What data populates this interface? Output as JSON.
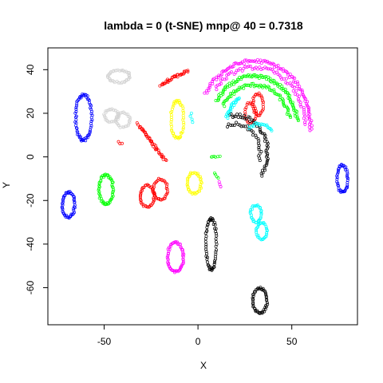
{
  "chart_data": {
    "type": "scatter",
    "title": "lambda = 0 (t-SNE) mnp@ 40 = 0.7318",
    "xlabel": "X",
    "ylabel": "Y",
    "xlim": [
      -80,
      85
    ],
    "ylim": [
      -77,
      50
    ],
    "x_ticks": [
      -50,
      0,
      50
    ],
    "y_ticks": [
      -60,
      -40,
      -20,
      0,
      20,
      40
    ],
    "x_tick_labels": [
      "-50",
      "0",
      "50"
    ],
    "y_tick_labels": [
      "-60",
      "-40",
      "-20",
      "0",
      "20",
      "40"
    ],
    "grid": false,
    "legend": "none",
    "clusters": [
      {
        "shape": "ellipse",
        "color": "#0000ff",
        "cx": -61,
        "cy": 18,
        "rx": 4.5,
        "ry": 11,
        "n": 70
      },
      {
        "shape": "ellipse",
        "color": "#0000ff",
        "cx": -69,
        "cy": -22,
        "rx": 3.5,
        "ry": 6,
        "n": 50
      },
      {
        "shape": "ellipse",
        "color": "#0000ff",
        "cx": 77,
        "cy": -10,
        "rx": 3,
        "ry": 6.5,
        "n": 45
      },
      {
        "shape": "ellipse",
        "color": "#00ff00",
        "cx": -49,
        "cy": -15,
        "rx": 4,
        "ry": 7,
        "n": 55
      },
      {
        "shape": "ellipse",
        "color": "#ff0000",
        "cx": -27,
        "cy": -18,
        "rx": 4,
        "ry": 5,
        "n": 40
      },
      {
        "shape": "ellipse",
        "color": "#ff0000",
        "cx": -20,
        "cy": -15,
        "rx": 4,
        "ry": 5,
        "n": 35
      },
      {
        "shape": "ellipse",
        "color": "#ffff00",
        "cx": -11,
        "cy": 17,
        "rx": 3.5,
        "ry": 9,
        "n": 50
      },
      {
        "shape": "ellipse",
        "color": "#ffff00",
        "cx": -2,
        "cy": -12,
        "rx": 4,
        "ry": 5,
        "n": 40
      },
      {
        "shape": "ellipse",
        "color": "#00ffff",
        "cx": 31,
        "cy": -26,
        "rx": 3,
        "ry": 4,
        "n": 30
      },
      {
        "shape": "ellipse",
        "color": "#00ffff",
        "cx": 34,
        "cy": -34,
        "rx": 3,
        "ry": 4,
        "n": 30
      },
      {
        "shape": "ellipse",
        "color": "#ff00ff",
        "cx": -12,
        "cy": -46,
        "rx": 4.5,
        "ry": 7,
        "n": 60
      },
      {
        "shape": "ellipse",
        "color": "#d3d3d3",
        "cx": -42,
        "cy": 37,
        "rx": 6,
        "ry": 3,
        "n": 45
      },
      {
        "shape": "ellipse",
        "color": "#d3d3d3",
        "cx": -46,
        "cy": 19,
        "rx": 4,
        "ry": 3,
        "n": 30
      },
      {
        "shape": "ellipse",
        "color": "#d3d3d3",
        "cx": -40,
        "cy": 17,
        "rx": 4,
        "ry": 3.5,
        "n": 30
      },
      {
        "shape": "ellipse",
        "color": "#000000",
        "cx": 7,
        "cy": -40,
        "rx": 3,
        "ry": 12,
        "n": 60
      },
      {
        "shape": "ellipse",
        "color": "#000000",
        "cx": 33,
        "cy": -66,
        "rx": 4,
        "ry": 6,
        "n": 50
      },
      {
        "shape": "ellipse",
        "color": "#ff0000",
        "cx": 32,
        "cy": 24,
        "rx": 3,
        "ry": 5,
        "n": 30
      },
      {
        "shape": "ellipse",
        "color": "#ff0000",
        "cx": 28,
        "cy": 20,
        "rx": 3,
        "ry": 5,
        "n": 25
      },
      {
        "shape": "arc",
        "color": "#000000",
        "cx": 20,
        "cy": 2,
        "r": 17,
        "a0": 100,
        "a1": -40,
        "n": 55
      },
      {
        "shape": "arc",
        "color": "#000000",
        "cx": 20,
        "cy": 2,
        "r": 13,
        "a0": 110,
        "a1": -20,
        "n": 30
      },
      {
        "shape": "arc",
        "color": "#00ff00",
        "cx": 30,
        "cy": 14,
        "r": 23,
        "a0": 150,
        "a1": 5,
        "n": 100
      },
      {
        "shape": "arc",
        "color": "#00ff00",
        "cx": 30,
        "cy": 14,
        "r": 19,
        "a0": 150,
        "a1": 10,
        "n": 70
      },
      {
        "shape": "arc",
        "color": "#ff00ff",
        "cx": 30,
        "cy": 14,
        "r": 30,
        "a0": 150,
        "a1": -5,
        "n": 110
      },
      {
        "shape": "arc",
        "color": "#ff00ff",
        "cx": 30,
        "cy": 14,
        "r": 27,
        "a0": 140,
        "a1": 0,
        "n": 70
      },
      {
        "shape": "arc",
        "color": "#00ffff",
        "cx": 30,
        "cy": 14,
        "r": 15,
        "a0": 165,
        "a1": 120,
        "n": 25
      },
      {
        "shape": "arc",
        "color": "#00ffff",
        "cx": 32,
        "cy": 5,
        "r": 10,
        "a0": 120,
        "a1": 40,
        "n": 20
      },
      {
        "shape": "line",
        "color": "#ff0000",
        "x0": -20,
        "y0": 33,
        "x1": -5,
        "y1": 40,
        "n": 35
      },
      {
        "shape": "line",
        "color": "#ff0000",
        "x0": -32,
        "y0": 15,
        "x1": -17,
        "y1": -2,
        "n": 45
      },
      {
        "shape": "line",
        "color": "#00ff00",
        "x0": 7,
        "y0": 0,
        "x1": 12,
        "y1": 0,
        "n": 6
      },
      {
        "shape": "line",
        "color": "#00ff00",
        "x0": 9,
        "y0": -8,
        "x1": 11,
        "y1": -10,
        "n": 4
      },
      {
        "shape": "line",
        "color": "#ff00ff",
        "x0": 11,
        "y0": -12,
        "x1": 13,
        "y1": -15,
        "n": 3
      },
      {
        "shape": "line",
        "color": "#00ffff",
        "x0": -4,
        "y0": 20,
        "x1": -2,
        "y1": 15,
        "n": 4
      },
      {
        "shape": "line",
        "color": "#ff0000",
        "x0": -42,
        "y0": 7,
        "x1": -40,
        "y1": 5,
        "n": 3
      }
    ]
  }
}
